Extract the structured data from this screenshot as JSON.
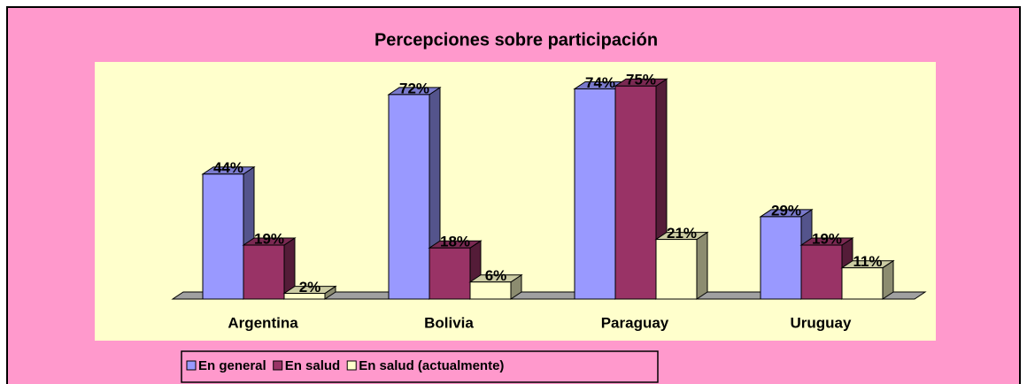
{
  "chart_data": {
    "type": "bar3d",
    "title": "Percepciones sobre participación",
    "categories": [
      "Argentina",
      "Bolivia",
      "Paraguay",
      "Uruguay"
    ],
    "series": [
      {
        "name": "En general",
        "color": "#9999ff",
        "values": [
          44,
          72,
          74,
          29
        ],
        "value_labels": [
          "44%",
          "72%",
          "74%",
          "29%"
        ]
      },
      {
        "name": "En salud",
        "color": "#993366",
        "values": [
          19,
          18,
          75,
          19
        ],
        "value_labels": [
          "19%",
          "18%",
          "75%",
          "19%"
        ]
      },
      {
        "name": "En salud (actualmente)",
        "color": "#ffffcc",
        "values": [
          2,
          6,
          21,
          11
        ],
        "value_labels": [
          "2%",
          "6%",
          "21%",
          "11%"
        ]
      }
    ],
    "legend": "bottom-left"
  }
}
